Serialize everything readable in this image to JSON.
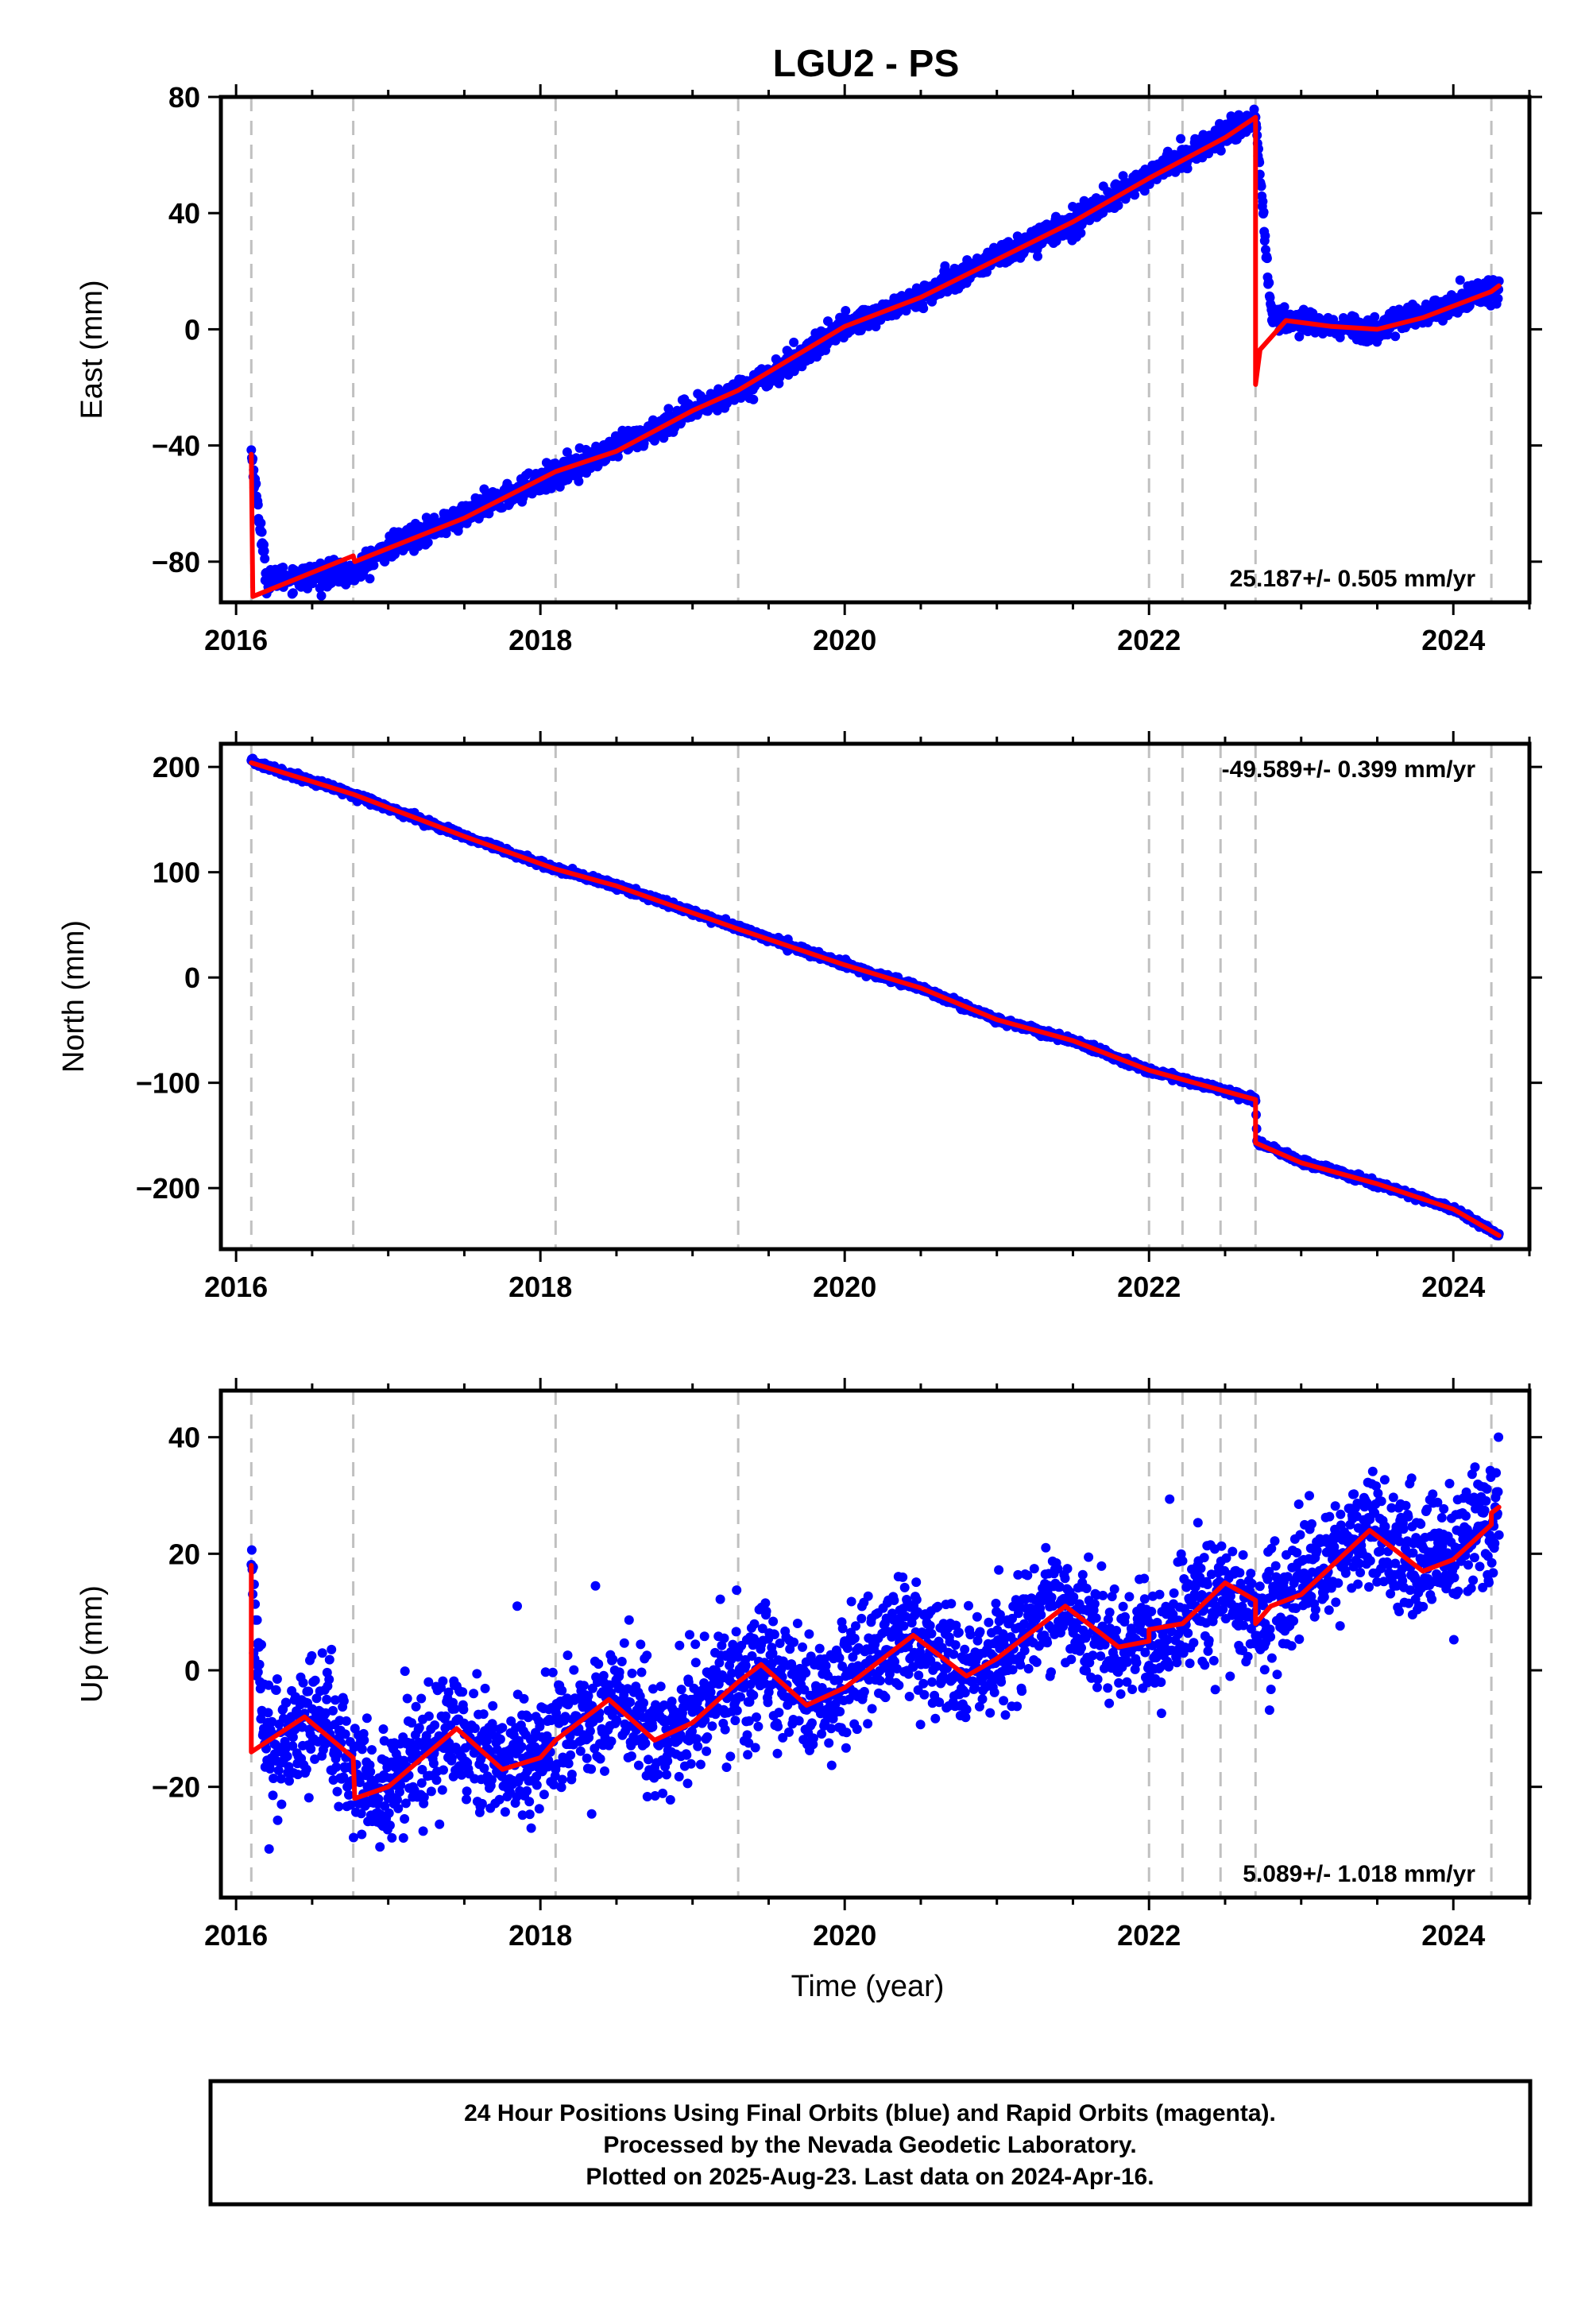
{
  "title": "LGU2 - PS",
  "xlabel": "Time (year)",
  "caption": [
    "24 Hour Positions Using Final Orbits (blue) and Rapid Orbits (magenta).",
    "Processed by the Nevada Geodetic Laboratory.",
    "Plotted on 2025-Aug-23. Last data on 2024-Apr-16."
  ],
  "colors": {
    "points": "#0000ff",
    "model": "#ff0000",
    "event_lines": "#c0c0c0",
    "frame": "#000000"
  },
  "chart_data": [
    {
      "type": "scatter",
      "ylabel": "East (mm)",
      "rate_label": "25.187+/- 0.505 mm/yr",
      "rate_position": "bottom-right",
      "xlim": [
        2015.9,
        2024.5
      ],
      "ylim": [
        -94,
        80
      ],
      "x_ticks": [
        "2016",
        "2018",
        "2020",
        "2022",
        "2024"
      ],
      "y_ticks": [
        80,
        40,
        0,
        -40,
        -80
      ],
      "event_lines": [
        2016.1,
        2016.77,
        2018.1,
        2019.3,
        2022.0,
        2022.22,
        2022.7,
        2024.25
      ],
      "series": [
        {
          "role": "observations",
          "x": [
            2016.1,
            2016.2,
            2016.77,
            2017.0,
            2017.5,
            2018.1,
            2018.5,
            2019.0,
            2019.5,
            2020.0,
            2020.5,
            2021.0,
            2021.5,
            2022.0,
            2022.5,
            2022.7,
            2022.8,
            2023.0,
            2023.5,
            2024.0,
            2024.3
          ],
          "y": [
            -42,
            -86,
            -84,
            -75,
            -64,
            -50,
            -41,
            -28,
            -16,
            1,
            11,
            25,
            37,
            53,
            67,
            73,
            6,
            2,
            0,
            9,
            14
          ],
          "noise": 2.0
        },
        {
          "role": "model",
          "x": [
            2016.1,
            2016.11,
            2016.77,
            2016.78,
            2017.5,
            2018.1,
            2018.5,
            2019.0,
            2019.3,
            2020.0,
            2020.5,
            2021.0,
            2021.5,
            2022.0,
            2022.5,
            2022.7,
            2022.7,
            2022.73,
            2022.9,
            2023.2,
            2023.5,
            2023.8,
            2024.25,
            2024.3
          ],
          "y": [
            -43,
            -92,
            -78,
            -80,
            -65,
            -49,
            -42,
            -28,
            -21,
            1,
            11,
            24,
            37,
            52,
            66,
            73,
            -19,
            -7,
            3,
            1,
            0,
            4,
            13,
            15
          ]
        }
      ]
    },
    {
      "type": "scatter",
      "ylabel": "North (mm)",
      "rate_label": "-49.589+/- 0.399 mm/yr",
      "rate_position": "top-right",
      "xlim": [
        2015.9,
        2024.5
      ],
      "ylim": [
        -258,
        222
      ],
      "x_ticks": [
        "2016",
        "2018",
        "2020",
        "2022",
        "2024"
      ],
      "y_ticks": [
        200,
        100,
        0,
        -100,
        -200
      ],
      "event_lines": [
        2016.1,
        2016.77,
        2018.1,
        2019.3,
        2022.0,
        2022.22,
        2022.47,
        2022.7,
        2024.25
      ],
      "series": [
        {
          "role": "observations",
          "x": [
            2016.1,
            2016.77,
            2017.5,
            2018.1,
            2018.5,
            2019.3,
            2020.0,
            2020.5,
            2021.0,
            2021.5,
            2022.0,
            2022.5,
            2022.7,
            2022.71,
            2023.0,
            2023.5,
            2024.0,
            2024.3
          ],
          "y": [
            205,
            174,
            134,
            103,
            87,
            47,
            12,
            -10,
            -40,
            -60,
            -88,
            -108,
            -116,
            -156,
            -175,
            -196,
            -220,
            -245
          ],
          "noise": 1.5
        },
        {
          "role": "model",
          "x": [
            2016.1,
            2016.77,
            2017.5,
            2018.1,
            2018.5,
            2019.3,
            2020.0,
            2020.5,
            2021.0,
            2021.5,
            2022.0,
            2022.5,
            2022.7,
            2022.7,
            2023.0,
            2023.5,
            2024.0,
            2024.3
          ],
          "y": [
            204,
            174,
            134,
            103,
            87,
            46,
            12,
            -10,
            -40,
            -60,
            -88,
            -108,
            -116,
            -157,
            -176,
            -196,
            -220,
            -245
          ]
        }
      ]
    },
    {
      "type": "scatter",
      "ylabel": "Up (mm)",
      "rate_label": "5.089+/- 1.018 mm/yr",
      "rate_position": "bottom-right",
      "xlim": [
        2015.9,
        2024.5
      ],
      "ylim": [
        -39,
        48
      ],
      "x_ticks": [
        "2016",
        "2018",
        "2020",
        "2022",
        "2024"
      ],
      "y_ticks": [
        40,
        20,
        0,
        -20
      ],
      "event_lines": [
        2016.1,
        2016.77,
        2018.1,
        2019.3,
        2022.0,
        2022.22,
        2022.47,
        2022.7,
        2024.25
      ],
      "series": [
        {
          "role": "observations",
          "x": [
            2016.1,
            2016.2,
            2016.5,
            2016.77,
            2016.9,
            2017.4,
            2017.8,
            2018.1,
            2018.5,
            2018.8,
            2019.3,
            2019.5,
            2019.8,
            2020.4,
            2020.8,
            2021.4,
            2021.8,
            2022.0,
            2022.5,
            2022.7,
            2022.8,
            2023.5,
            2023.8,
            2024.3
          ],
          "y": [
            17,
            -14,
            -8,
            -15,
            -22,
            -10,
            -17,
            -12,
            -5,
            -12,
            -2,
            1,
            -6,
            6,
            -1,
            11,
            4,
            5,
            15,
            8,
            11,
            24,
            17,
            27
          ],
          "noise": 5.0
        },
        {
          "role": "model",
          "x": [
            2016.1,
            2016.1,
            2016.45,
            2016.77,
            2016.78,
            2017.0,
            2017.45,
            2017.75,
            2018.0,
            2018.1,
            2018.45,
            2018.75,
            2019.0,
            2019.3,
            2019.45,
            2019.75,
            2020.0,
            2020.45,
            2020.8,
            2021.0,
            2021.45,
            2021.8,
            2022.0,
            2022.0,
            2022.22,
            2022.5,
            2022.7,
            2022.7,
            2022.8,
            2023.0,
            2023.45,
            2023.8,
            2024.0,
            2024.25,
            2024.25,
            2024.3
          ],
          "y": [
            18,
            -14,
            -8,
            -15,
            -22,
            -20,
            -10,
            -17,
            -15,
            -12,
            -5,
            -12,
            -9,
            -2,
            1,
            -6,
            -3,
            6,
            -1,
            2,
            11,
            4,
            5,
            7,
            8,
            15,
            12,
            8,
            11,
            13,
            24,
            17,
            19,
            25,
            27,
            28
          ]
        }
      ]
    }
  ]
}
